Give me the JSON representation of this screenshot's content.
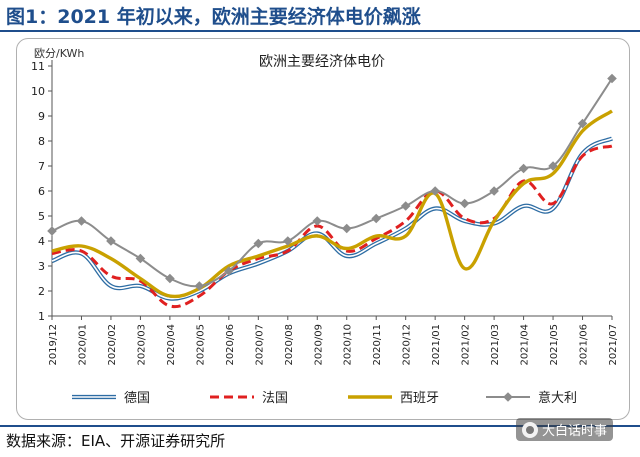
{
  "figure_title": "图1：2021 年初以来，欧洲主要经济体电价飙涨",
  "source": "数据来源：EIA、开源证券研究所",
  "watermark": {
    "text": "大白话时事",
    "icon": "wechat-channel-icon"
  },
  "colors": {
    "germany": "#2e6da4",
    "france": "#e02020",
    "spain": "#c9a100",
    "italy": "#8c8c8c",
    "title": "#1f4e8c"
  },
  "chart_data": {
    "type": "line",
    "title": "欧洲主要经济体电价",
    "ylabel": "欧分/KWh",
    "xlabel": "",
    "ylim": [
      1,
      11
    ],
    "yticks": [
      1,
      2,
      3,
      4,
      5,
      6,
      7,
      8,
      9,
      10,
      11
    ],
    "grid": false,
    "legend_position": "bottom",
    "categories": [
      "2019/12",
      "2020/01",
      "2020/02",
      "2020/03",
      "2020/04",
      "2020/05",
      "2020/06",
      "2020/07",
      "2020/08",
      "2020/09",
      "2020/10",
      "2020/11",
      "2020/12",
      "2021/01",
      "2021/02",
      "2021/03",
      "2021/04",
      "2021/05",
      "2021/06",
      "2021/07"
    ],
    "series": [
      {
        "name": "德国",
        "style": "double-line",
        "values": [
          3.2,
          3.5,
          2.2,
          2.2,
          1.7,
          2.0,
          2.7,
          3.1,
          3.6,
          4.3,
          3.4,
          3.9,
          4.5,
          5.3,
          4.8,
          4.7,
          5.4,
          5.3,
          7.5,
          8.1
        ]
      },
      {
        "name": "法国",
        "style": "dashed",
        "values": [
          3.5,
          3.6,
          2.6,
          2.4,
          1.4,
          1.8,
          2.8,
          3.3,
          3.6,
          4.6,
          3.6,
          4.1,
          4.8,
          6.0,
          4.9,
          4.9,
          6.4,
          5.5,
          7.4,
          7.8
        ]
      },
      {
        "name": "西班牙",
        "style": "solid-thick",
        "values": [
          3.6,
          3.8,
          3.3,
          2.5,
          1.8,
          2.1,
          3.0,
          3.4,
          3.8,
          4.2,
          3.7,
          4.2,
          4.2,
          5.9,
          2.9,
          4.8,
          6.3,
          6.7,
          8.4,
          9.2
        ]
      },
      {
        "name": "意大利",
        "style": "line-diamond",
        "values": [
          4.4,
          4.8,
          4.0,
          3.3,
          2.5,
          2.2,
          2.8,
          3.9,
          4.0,
          4.8,
          4.5,
          4.9,
          5.4,
          6.0,
          5.5,
          6.0,
          6.9,
          7.0,
          8.7,
          10.5
        ]
      }
    ]
  }
}
